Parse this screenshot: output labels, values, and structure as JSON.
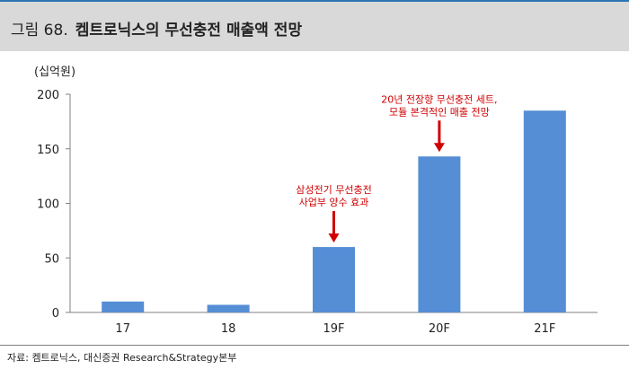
{
  "header": {
    "figure_label": "그림 68.",
    "title": "켐트로닉스의 무선충전 매출액 전망"
  },
  "chart_data": {
    "type": "bar",
    "title": "켐트로닉스의 무선충전 매출액 전망",
    "unit_label": "(십억원)",
    "xlabel": "",
    "ylabel": "(십억원)",
    "categories": [
      "17",
      "18",
      "19F",
      "20F",
      "21F"
    ],
    "values": [
      10,
      7,
      60,
      143,
      185
    ],
    "ylim": [
      0,
      200
    ],
    "yticks": [
      "0",
      "50",
      "100",
      "150",
      "200"
    ],
    "grid": false,
    "bar_color": "#558ed5",
    "annotation_color": "#d00000",
    "annotations": [
      {
        "category": "19F",
        "lines": [
          "삼성전기 무선충전",
          "사업부 양수 효과"
        ]
      },
      {
        "category": "20F",
        "lines": [
          "20년 전장향 무선충전 세트,",
          "모듈 본격적인 매출 전망"
        ]
      }
    ]
  },
  "footer": {
    "source": "자료: 켐트로닉스, 대신증권 Research&Strategy본부"
  }
}
